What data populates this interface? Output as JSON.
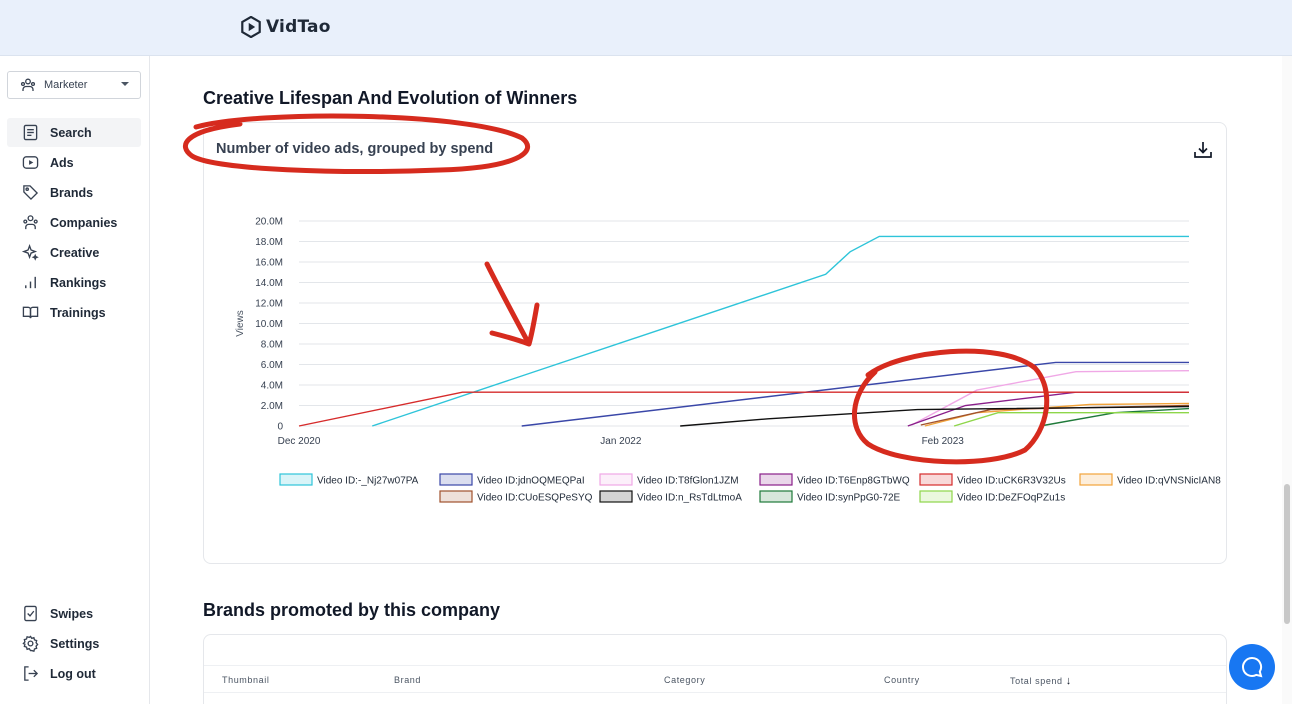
{
  "app": {
    "name": "VidTao"
  },
  "sidebar": {
    "role": "Marketer",
    "items": [
      {
        "label": "Search",
        "icon": "search-doc-icon",
        "active": true
      },
      {
        "label": "Ads",
        "icon": "play-icon"
      },
      {
        "label": "Brands",
        "icon": "tag-icon"
      },
      {
        "label": "Companies",
        "icon": "companies-icon"
      },
      {
        "label": "Creative",
        "icon": "sparkle-icon"
      },
      {
        "label": "Rankings",
        "icon": "bar-chart-icon"
      },
      {
        "label": "Trainings",
        "icon": "book-icon"
      }
    ],
    "bottom_items": [
      {
        "label": "Swipes",
        "icon": "swipe-icon"
      },
      {
        "label": "Settings",
        "icon": "gear-icon"
      },
      {
        "label": "Log out",
        "icon": "logout-icon"
      }
    ]
  },
  "main": {
    "section1_title": "Creative Lifespan And Evolution of Winners",
    "chart_card_title": "Number of video ads, grouped by spend",
    "section2_title": "Brands promoted by this company",
    "table_headers": [
      "Thumbnail",
      "Brand",
      "Category",
      "Country",
      "Total spend"
    ]
  },
  "annotation_color": "#d62b1e",
  "chart_data": {
    "type": "line",
    "title": "",
    "xlabel": "",
    "ylabel": "Views",
    "x_ticks": [
      "Dec 2020",
      "Jan 2022",
      "Feb 2023"
    ],
    "y_ticks": [
      "0",
      "2.0M",
      "4.0M",
      "6.0M",
      "8.0M",
      "10.0M",
      "12.0M",
      "14.0M",
      "16.0M",
      "18.0M",
      "20.0M"
    ],
    "ylim": [
      0,
      20000000
    ],
    "xlim": [
      "2020-12-01",
      "2023-12-01"
    ],
    "grid": true,
    "legend_position": "bottom",
    "series": [
      {
        "name": "Video ID:-_Nj27w07PA",
        "color": "#2ec4d9",
        "points": [
          [
            "2021-03-01",
            0
          ],
          [
            "2022-09-10",
            14800000
          ],
          [
            "2022-10-10",
            17000000
          ],
          [
            "2022-11-15",
            18500000
          ],
          [
            "2023-12-01",
            18500000
          ]
        ]
      },
      {
        "name": "Video ID:jdnOQMEQPaI",
        "color": "#3a47a8",
        "points": [
          [
            "2021-09-01",
            0
          ],
          [
            "2023-06-20",
            6200000
          ],
          [
            "2023-12-01",
            6200000
          ]
        ]
      },
      {
        "name": "Video ID:T8fGlon1JZM",
        "color": "#f0a8e6",
        "points": [
          [
            "2022-12-25",
            100000
          ],
          [
            "2023-03-15",
            3500000
          ],
          [
            "2023-07-15",
            5300000
          ],
          [
            "2023-12-01",
            5400000
          ]
        ]
      },
      {
        "name": "Video ID:T6Enp8GTbWQ",
        "color": "#8a1f8a",
        "points": [
          [
            "2022-12-20",
            0
          ],
          [
            "2023-03-01",
            2000000
          ],
          [
            "2023-07-15",
            3300000
          ],
          [
            "2023-12-01",
            3300000
          ]
        ]
      },
      {
        "name": "Video ID:uCK6R3V32Us",
        "color": "#d62b2b",
        "points": [
          [
            "2020-12-01",
            0
          ],
          [
            "2021-06-20",
            3300000
          ],
          [
            "2023-12-01",
            3300000
          ]
        ]
      },
      {
        "name": "Video ID:qVNSNicIAN8",
        "color": "#f2a33a",
        "points": [
          [
            "2023-01-10",
            0
          ],
          [
            "2023-03-15",
            1300000
          ],
          [
            "2023-08-01",
            2100000
          ],
          [
            "2023-12-01",
            2200000
          ]
        ]
      },
      {
        "name": "Video ID:CUoESQPeSYQ",
        "color": "#a0522d",
        "points": [
          [
            "2023-01-05",
            100000
          ],
          [
            "2023-04-01",
            1600000
          ],
          [
            "2023-12-01",
            2000000
          ]
        ]
      },
      {
        "name": "Video ID:n_RsTdLtmoA",
        "color": "#111111",
        "points": [
          [
            "2022-03-15",
            0
          ],
          [
            "2022-07-01",
            700000
          ],
          [
            "2023-01-01",
            1600000
          ],
          [
            "2023-12-01",
            1900000
          ]
        ]
      },
      {
        "name": "Video ID:synPpG0-72E",
        "color": "#1f7a3a",
        "points": [
          [
            "2023-06-01",
            0
          ],
          [
            "2023-09-01",
            1300000
          ],
          [
            "2023-12-01",
            1700000
          ]
        ]
      },
      {
        "name": "Video ID:DeZFOqPZu1s",
        "color": "#8ed64a",
        "points": [
          [
            "2023-02-15",
            0
          ],
          [
            "2023-04-10",
            1300000
          ],
          [
            "2023-12-01",
            1300000
          ]
        ]
      }
    ]
  }
}
